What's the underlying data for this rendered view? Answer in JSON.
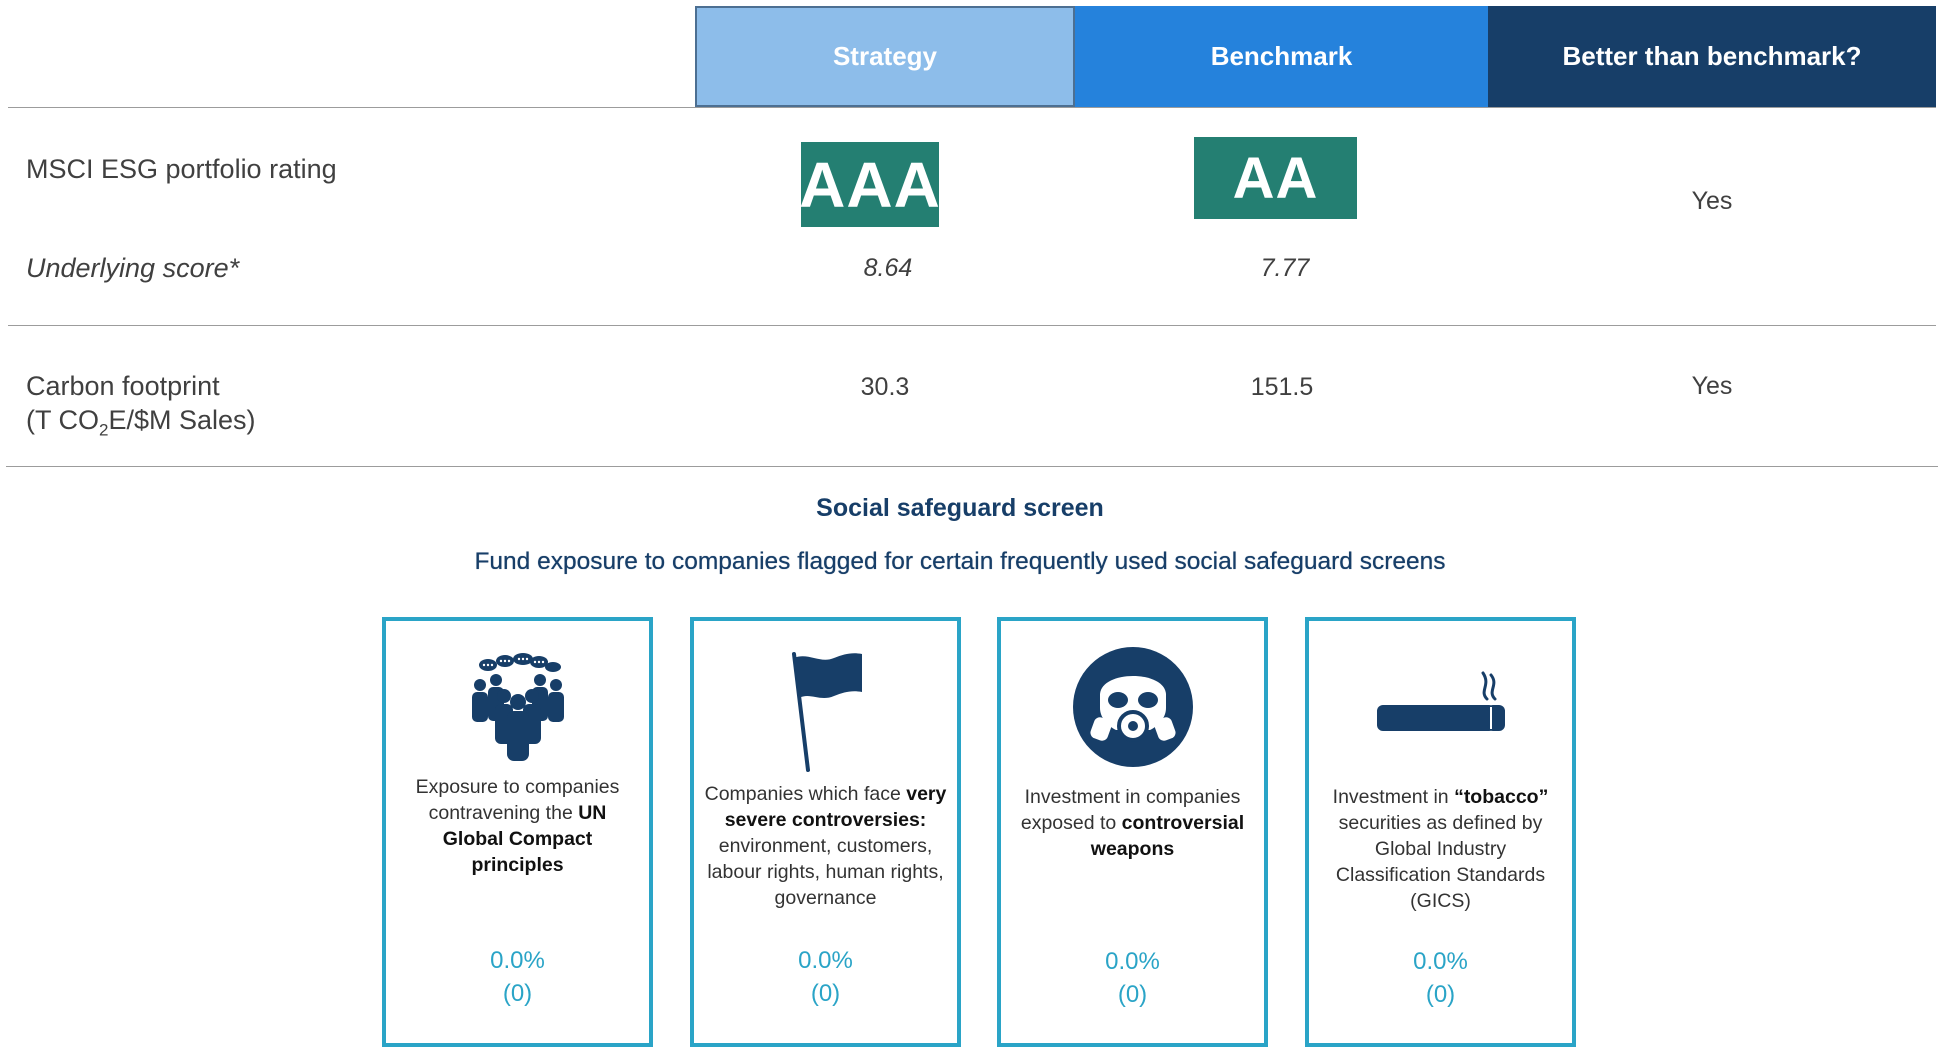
{
  "table": {
    "headers": {
      "strategy": "Strategy",
      "benchmark": "Benchmark",
      "better": "Better than benchmark?"
    },
    "rows": {
      "msci": {
        "label": "MSCI ESG portfolio rating",
        "strategy_rating": "AAA",
        "benchmark_rating": "AA",
        "better": "Yes"
      },
      "underlying": {
        "label": "Underlying score*",
        "strategy": "8.64",
        "benchmark": "7.77"
      },
      "carbon": {
        "label_line1": "Carbon footprint",
        "label_pre": "(T CO",
        "label_sub": "2",
        "label_post": "E/$M Sales)",
        "strategy": "30.3",
        "benchmark": "151.5",
        "better": "Yes"
      }
    },
    "colors": {
      "strategy": "#8dbdea",
      "benchmark": "#2582dc",
      "better": "#173e68",
      "badge": "#247f72"
    }
  },
  "social": {
    "title": "Social safeguard screen",
    "subtitle": "Fund exposure to companies flagged for certain frequently used social safeguard screens",
    "cards": [
      {
        "icon": "people-group-icon",
        "text": [
          {
            "t": "Exposure to companies contravening the "
          },
          {
            "b": "UN Global Compact principles"
          }
        ],
        "pct": "0.0%",
        "count": "(0)"
      },
      {
        "icon": "flag-icon",
        "text": [
          {
            "t": "Companies which face "
          },
          {
            "b": "very severe controversies:"
          },
          {
            "t": " environment, customers, labour rights, human rights, governance"
          }
        ],
        "pct": "0.0%",
        "count": "(0)"
      },
      {
        "icon": "gas-mask-icon",
        "text": [
          {
            "t": "Investment in companies exposed to "
          },
          {
            "b": "controversial weapons"
          }
        ],
        "pct": "0.0%",
        "count": "(0)"
      },
      {
        "icon": "cigarette-icon",
        "text": [
          {
            "t": "Investment in "
          },
          {
            "b": "“tobacco”"
          },
          {
            "t": " securities as defined by Global Industry Classification Standards (GICS)"
          }
        ],
        "pct": "0.0%",
        "count": "(0)"
      }
    ],
    "accent": "#2aa4c7",
    "title_color": "#173e68"
  }
}
